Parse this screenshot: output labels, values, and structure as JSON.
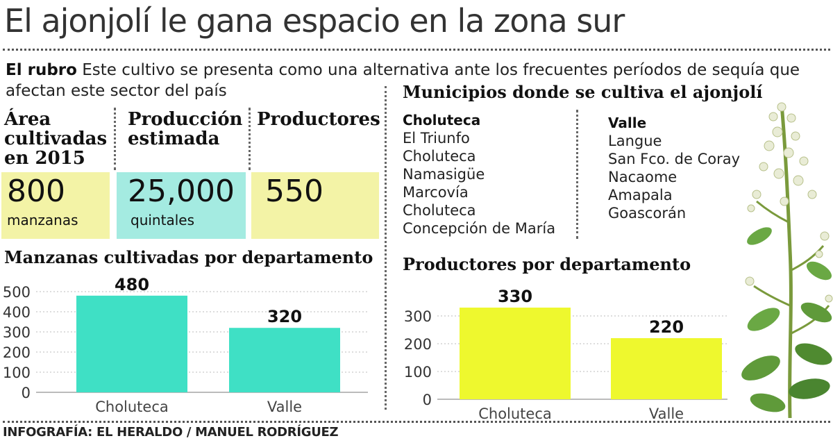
{
  "title": "El ajonjolí le gana espacio en la zona sur",
  "intro": {
    "lead": "El rubro",
    "text": "Este cultivo se presenta como una alternativa ante los frecuentes períodos de sequía que afectan este sector del país"
  },
  "stats": [
    {
      "header": [
        "Área",
        "cultivadas",
        "en 2015"
      ],
      "value": "800",
      "unit": "manzanas",
      "color": "#f3f3a6"
    },
    {
      "header": [
        "Producción",
        "estimada"
      ],
      "value": "25,000",
      "unit": "quintales",
      "color": "#a4ebe1"
    },
    {
      "header": [
        "Productores"
      ],
      "value": "550",
      "unit": "",
      "color": "#f3f3a6"
    }
  ],
  "municipios": {
    "title": "Municipios donde se cultiva el  ajonjolí",
    "groups": [
      {
        "name": "Choluteca",
        "items": [
          "El Triunfo",
          "Choluteca",
          "Namasigüe",
          "Marcovía",
          "Choluteca",
          "Concepción de María"
        ]
      },
      {
        "name": "Valle",
        "items": [
          "Langue",
          "San Fco. de Coray",
          "Nacaome",
          "Amapala",
          "Goascorán"
        ]
      }
    ]
  },
  "credit": "INFOGRAFÍA: EL HERALDO / MANUEL RODRÍGUEZ",
  "chart_data": [
    {
      "type": "bar",
      "title": "Manzanas cultivadas por departamento",
      "categories": [
        "Choluteca",
        "Valle"
      ],
      "values": [
        480,
        320
      ],
      "data_labels": [
        "480",
        "320"
      ],
      "yticks": [
        0,
        100,
        200,
        300,
        400,
        500
      ],
      "ylim": [
        0,
        500
      ],
      "grid": true,
      "bar_color": "#3fe0c5"
    },
    {
      "type": "bar",
      "title": "Productores por departamento",
      "categories": [
        "Choluteca",
        "Valle"
      ],
      "values": [
        330,
        220
      ],
      "data_labels": [
        "330",
        "220"
      ],
      "yticks": [
        0,
        100,
        200,
        300
      ],
      "ylim": [
        0,
        300
      ],
      "grid": true,
      "bar_color": "#eef82e"
    }
  ]
}
